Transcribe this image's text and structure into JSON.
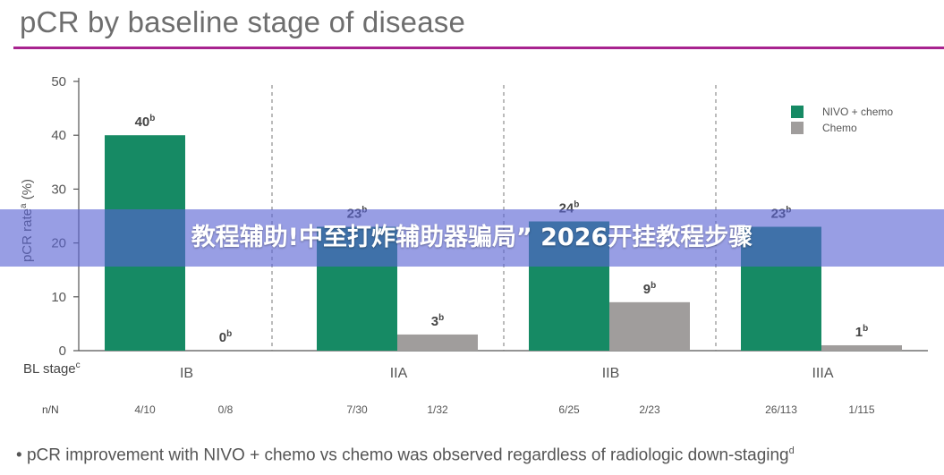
{
  "chart_data": {
    "type": "bar",
    "title": "pCR by baseline stage of disease",
    "ylabel": "pCR rate",
    "ylabel_superscript": "a",
    "ylabel_unit": "(%)",
    "ylim": [
      0,
      50
    ],
    "yticks": [
      0,
      10,
      20,
      30,
      40,
      50
    ],
    "grid": false,
    "legend_position": "top-right",
    "xaxis_label": "BL stage",
    "xaxis_label_superscript": "c",
    "categories": [
      "IB",
      "IIA",
      "IIB",
      "IIIA"
    ],
    "nn_label": "n/N",
    "series": [
      {
        "name": "NIVO + chemo",
        "color": "#168a64",
        "values": [
          40,
          23,
          24,
          23
        ],
        "labels": [
          "40",
          "23",
          "24",
          "23"
        ],
        "label_superscript": "b",
        "nn": [
          "4/10",
          "7/30",
          "6/25",
          "26/113"
        ]
      },
      {
        "name": "Chemo",
        "color": "#a09d9c",
        "values": [
          0,
          3,
          9,
          1
        ],
        "labels": [
          "0",
          "3",
          "9",
          "1"
        ],
        "label_superscript": "b",
        "nn": [
          "0/8",
          "1/32",
          "2/23",
          "1/115"
        ]
      }
    ]
  },
  "footnote": {
    "bullet": "•",
    "text": "pCR improvement with NIVO + chemo vs chemo was observed regardless of radiologic down-staging",
    "superscript": "d"
  },
  "banner": {
    "text": "教程辅助!中至打炸辅助器骗局” 2026开挂教程步骤"
  }
}
